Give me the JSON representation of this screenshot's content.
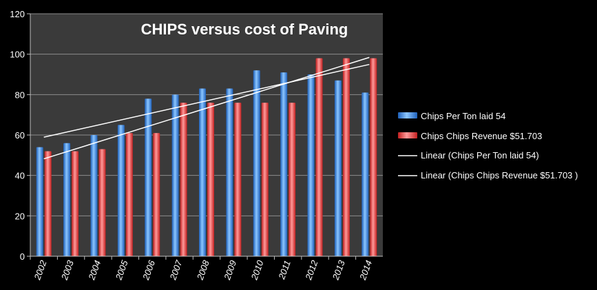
{
  "chart_data": {
    "type": "bar",
    "title": "CHIPS versus cost of Paving",
    "xlabel": "",
    "ylabel": "",
    "ylim": [
      0,
      120
    ],
    "yticks": [
      0,
      20,
      40,
      60,
      80,
      100,
      120
    ],
    "grid": true,
    "legend_position": "right",
    "categories": [
      "2002",
      "2003",
      "2004",
      "2005",
      "2006",
      "2007",
      "2008",
      "2009",
      "2010",
      "2011",
      "2012",
      "2013",
      "2014"
    ],
    "series": [
      {
        "name": "Chips Per Ton laid 54",
        "color": "#3e8ee6",
        "values": [
          54,
          56,
          60,
          65,
          78,
          80,
          83,
          83,
          92,
          91,
          90,
          87,
          81
        ]
      },
      {
        "name": "Chips Chips Revenue  $51.703",
        "color": "#f04545",
        "values": [
          52,
          52,
          53,
          61,
          61,
          76,
          76,
          76,
          76,
          76,
          98,
          98,
          98
        ]
      }
    ],
    "trendlines": [
      {
        "name": "Linear (Chips Per Ton laid 54)",
        "series_index": 0,
        "color": "#ffffff"
      },
      {
        "name": "Linear (Chips Chips Revenue  $51.703 )",
        "series_index": 1,
        "color": "#ffffff"
      }
    ]
  }
}
